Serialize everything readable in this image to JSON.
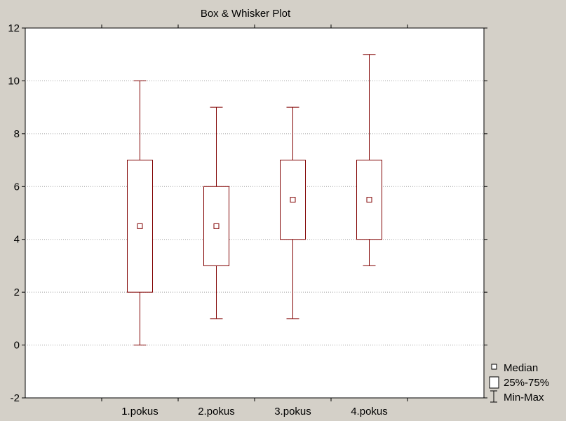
{
  "chart_data": {
    "type": "box",
    "title": "Box & Whisker Plot",
    "xlabel": "",
    "ylabel": "",
    "ylim": [
      -2,
      12
    ],
    "yticks": [
      -2,
      0,
      2,
      4,
      6,
      8,
      10,
      12
    ],
    "y_grid": true,
    "categories": [
      "1.pokus",
      "2.pokus",
      "3.pokus",
      "4.pokus"
    ],
    "series": [
      {
        "name": "1.pokus",
        "min": 0,
        "q1": 2,
        "median": 4.5,
        "q3": 7,
        "max": 10
      },
      {
        "name": "2.pokus",
        "min": 1,
        "q1": 3,
        "median": 4.5,
        "q3": 6,
        "max": 9
      },
      {
        "name": "3.pokus",
        "min": 1,
        "q1": 4,
        "median": 5.5,
        "q3": 7,
        "max": 9
      },
      {
        "name": "4.pokus",
        "min": 3,
        "q1": 4,
        "median": 5.5,
        "q3": 7,
        "max": 11
      }
    ],
    "legend": {
      "placement": "bottom-right",
      "items": [
        "Median",
        "25%-75%",
        "Min-Max"
      ]
    },
    "colors": {
      "box": "#800000",
      "grid": "#a0a0a0",
      "background": "#d4d0c8"
    }
  }
}
